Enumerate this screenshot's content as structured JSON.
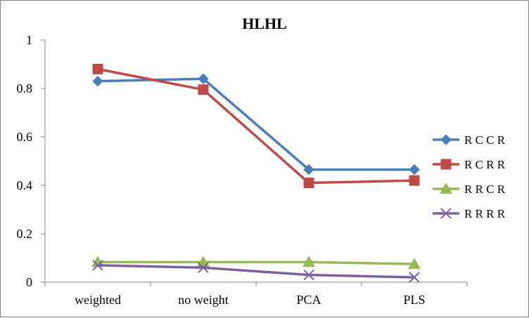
{
  "chart_data": {
    "type": "line",
    "title": "HLHL",
    "xlabel": "",
    "ylabel": "",
    "categories": [
      "weighted",
      "no weight",
      "PCA",
      "PLS"
    ],
    "ylim": [
      0,
      1
    ],
    "yticks": [
      "0",
      "0.2",
      "0.4",
      "0.6",
      "0.8",
      "1"
    ],
    "ytick_values": [
      0,
      0.2,
      0.4,
      0.6,
      0.8,
      1
    ],
    "grid": false,
    "legend_position": "right",
    "series": [
      {
        "name": "R C C R",
        "values": [
          0.83,
          0.84,
          0.465,
          0.465
        ],
        "color": "#4a7ebb",
        "marker": "diamond"
      },
      {
        "name": "R C R R",
        "values": [
          0.88,
          0.795,
          0.41,
          0.42
        ],
        "color": "#be4b48",
        "marker": "square"
      },
      {
        "name": "R R C R",
        "values": [
          0.083,
          0.083,
          0.083,
          0.075
        ],
        "color": "#98b954",
        "marker": "triangle"
      },
      {
        "name": "R R R R",
        "values": [
          0.07,
          0.06,
          0.03,
          0.02
        ],
        "color": "#7d60a0",
        "marker": "x"
      }
    ]
  }
}
